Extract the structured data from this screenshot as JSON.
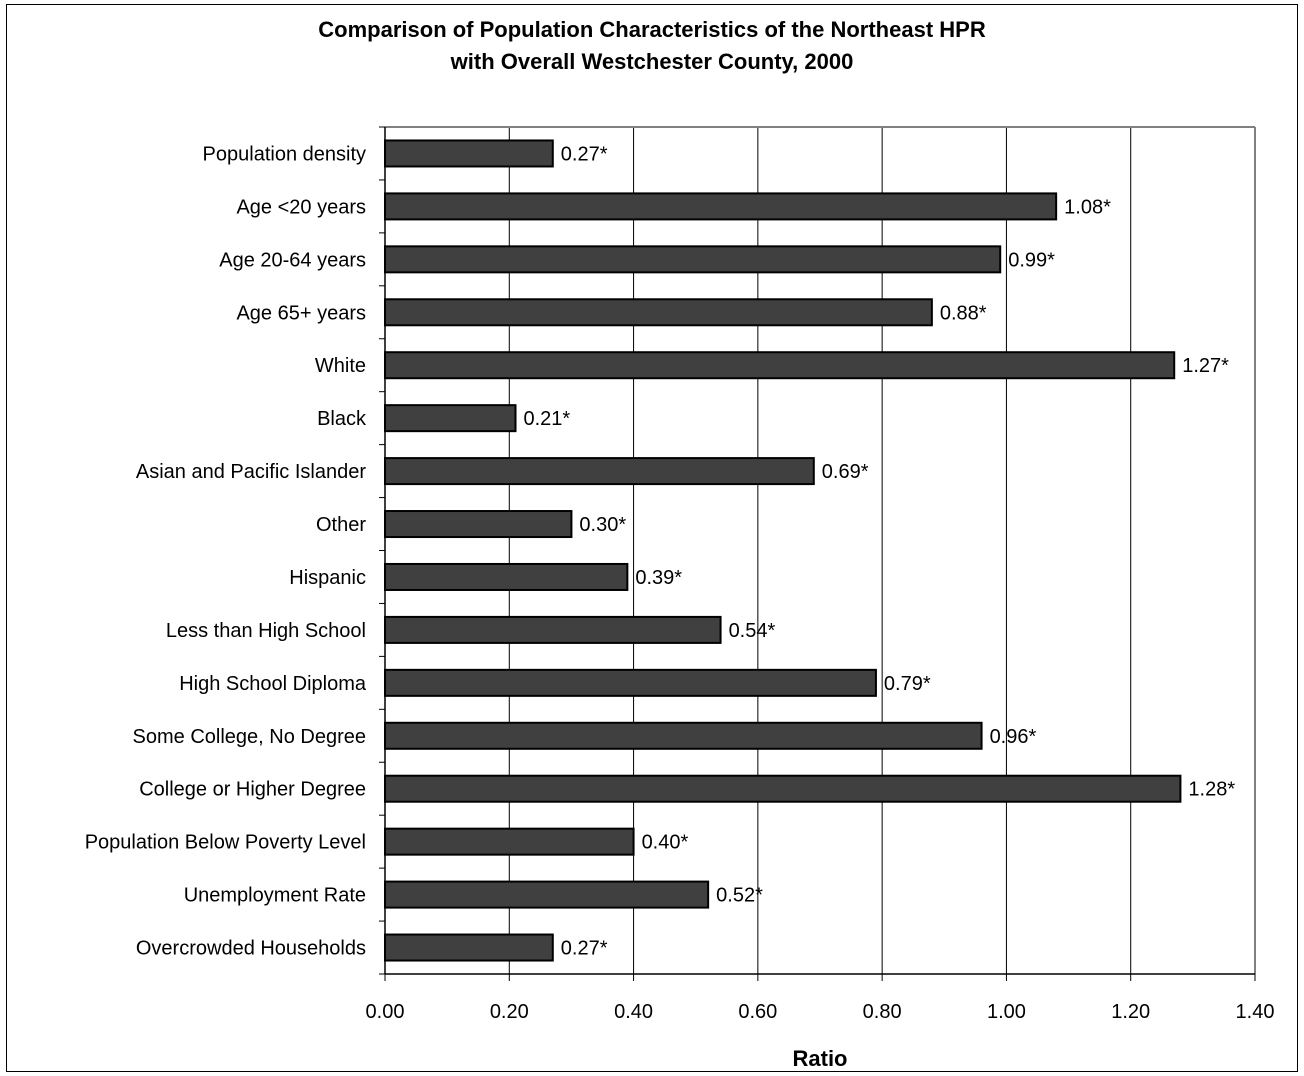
{
  "chart_data": {
    "type": "bar",
    "orientation": "horizontal",
    "title": [
      "Comparison of Population Characteristics of the Northeast HPR",
      "with Overall Westchester County, 2000"
    ],
    "xlabel": "Ratio",
    "ylabel": "",
    "xlim": [
      0,
      1.4
    ],
    "x_ticks": [
      "0.00",
      "0.20",
      "0.40",
      "0.60",
      "0.80",
      "1.00",
      "1.20",
      "1.40"
    ],
    "categories": [
      "Population density",
      "Age <20 years",
      "Age 20-64 years",
      "Age 65+ years",
      "White",
      "Black",
      "Asian and Pacific Islander",
      "Other",
      "Hispanic",
      "Less than High School",
      "High School Diploma",
      "Some College, No Degree",
      "College or Higher Degree",
      "Population Below Poverty Level",
      "Unemployment Rate",
      "Overcrowded Households"
    ],
    "values": [
      0.27,
      1.08,
      0.99,
      0.88,
      1.27,
      0.21,
      0.69,
      0.3,
      0.39,
      0.54,
      0.79,
      0.96,
      1.28,
      0.4,
      0.52,
      0.27
    ],
    "data_labels": [
      "0.27*",
      "1.08*",
      "0.99*",
      "0.88*",
      "1.27*",
      "0.21*",
      "0.69*",
      "0.30*",
      "0.39*",
      "0.54*",
      "0.79*",
      "0.96*",
      "1.28*",
      "0.40*",
      "0.52*",
      "0.27*"
    ],
    "grid": "vertical",
    "legend": "none",
    "colors": {
      "bar": "#404040",
      "bar_edge": "#000000",
      "grid": "#000000",
      "plot_border": "#808080"
    }
  }
}
